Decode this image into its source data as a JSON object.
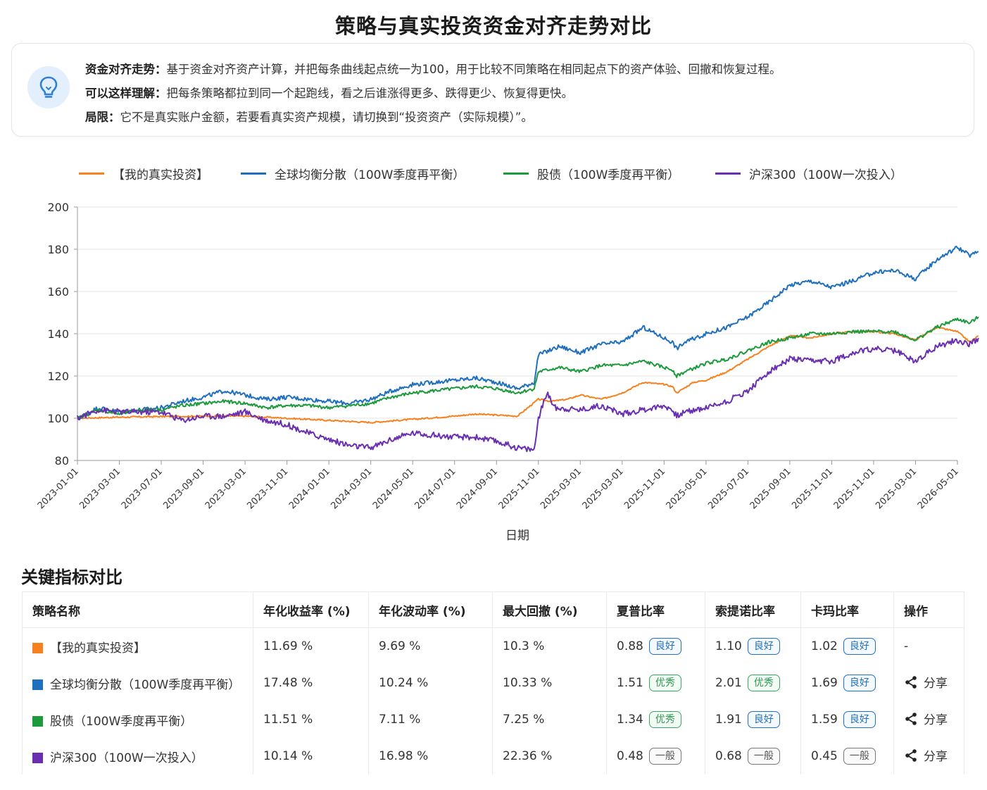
{
  "page": {
    "title": "策略与真实投资资金对齐走势对比"
  },
  "info": {
    "icon": "lightbulb-icon",
    "lines": [
      {
        "label": "资金对齐走势：",
        "text": "基于资金对齐资产计算，并把每条曲线起点统一为100，用于比较不同策略在相同起点下的资产体验、回撤和恢复过程。"
      },
      {
        "label": "可以这样理解：",
        "text": "把每条策略都拉到同一个起跑线，看之后谁涨得更多、跌得更少、恢复得更快。"
      },
      {
        "label": "局限：",
        "text": "它不是真实账户金额，若要看真实资产规模，请切换到“投资资产（实际规模）”。"
      }
    ]
  },
  "chart_data": {
    "type": "line",
    "title": "",
    "xlabel": "日期",
    "ylabel": "",
    "ylim": [
      80,
      200
    ],
    "yticks": [
      80,
      100,
      120,
      140,
      160,
      180,
      200
    ],
    "grid": true,
    "legend_position": "top",
    "xtick_labels": [
      "2023-01-01",
      "2023-03-01",
      "2023-07-01",
      "2023-09-01",
      "2023-03-01",
      "2023-11-01",
      "2024-01-01",
      "2024-03-01",
      "2024-05-01",
      "2024-07-01",
      "2024-09-01",
      "2025-11-01",
      "2025-03-01",
      "2025-03-01",
      "2025-11-01",
      "2025-05-01",
      "2025-07-01",
      "2025-09-01",
      "2025-11-01",
      "2025-11-01",
      "2025-03-01",
      "2026-05-01"
    ],
    "series": [
      {
        "name": "【我的真实投资】",
        "color": "#f5821f",
        "points": [
          [
            0,
            100
          ],
          [
            1,
            100.5
          ],
          [
            2,
            100.8
          ],
          [
            3,
            101
          ],
          [
            4,
            101
          ],
          [
            5,
            100
          ],
          [
            6,
            99
          ],
          [
            7,
            98
          ],
          [
            8,
            99.5
          ],
          [
            9,
            101
          ],
          [
            9.5,
            102
          ],
          [
            10,
            101.5
          ],
          [
            10.5,
            101
          ],
          [
            11,
            109
          ],
          [
            11.3,
            108
          ],
          [
            11.7,
            109
          ],
          [
            12,
            111
          ],
          [
            12.5,
            109
          ],
          [
            13,
            112
          ],
          [
            13.5,
            117
          ],
          [
            14,
            116
          ],
          [
            14.2,
            115
          ],
          [
            14.3,
            112
          ],
          [
            14.7,
            117
          ],
          [
            15,
            118
          ],
          [
            15.5,
            122
          ],
          [
            16,
            128
          ],
          [
            16.5,
            134
          ],
          [
            17,
            139
          ],
          [
            17.5,
            138
          ],
          [
            18,
            140
          ],
          [
            18.5,
            141
          ],
          [
            19,
            141
          ],
          [
            19.5,
            140
          ],
          [
            20,
            137
          ],
          [
            20.5,
            143
          ],
          [
            21,
            141
          ],
          [
            21.3,
            136
          ],
          [
            21.5,
            139
          ]
        ]
      },
      {
        "name": "全球均衡分散（100W季度再平衡）",
        "color": "#1f6fc0",
        "points": [
          [
            0,
            100
          ],
          [
            0.5,
            105
          ],
          [
            1,
            103
          ],
          [
            1.5,
            104
          ],
          [
            2,
            105
          ],
          [
            2.5,
            108
          ],
          [
            3,
            110
          ],
          [
            3.5,
            113
          ],
          [
            4,
            111
          ],
          [
            4.5,
            109
          ],
          [
            5,
            110
          ],
          [
            5.5,
            109
          ],
          [
            6,
            108
          ],
          [
            6.5,
            107
          ],
          [
            7,
            109
          ],
          [
            7.5,
            113
          ],
          [
            8,
            116
          ],
          [
            8.5,
            117
          ],
          [
            9,
            118
          ],
          [
            9.5,
            119
          ],
          [
            10,
            117
          ],
          [
            10.5,
            114
          ],
          [
            10.9,
            117
          ],
          [
            11,
            130
          ],
          [
            11.5,
            134
          ],
          [
            12,
            131
          ],
          [
            12.5,
            135
          ],
          [
            13,
            136
          ],
          [
            13.5,
            143
          ],
          [
            14,
            138
          ],
          [
            14.2,
            136
          ],
          [
            14.3,
            133
          ],
          [
            14.5,
            136
          ],
          [
            15,
            140
          ],
          [
            15.5,
            143
          ],
          [
            16,
            148
          ],
          [
            16.5,
            155
          ],
          [
            17,
            163
          ],
          [
            17.5,
            165
          ],
          [
            18,
            162
          ],
          [
            18.5,
            165
          ],
          [
            19,
            169
          ],
          [
            19.5,
            170
          ],
          [
            20,
            166
          ],
          [
            20.5,
            175
          ],
          [
            21,
            181
          ],
          [
            21.3,
            177
          ],
          [
            21.5,
            179
          ]
        ]
      },
      {
        "name": "股债（100W季度再平衡）",
        "color": "#1c9a3c",
        "points": [
          [
            0,
            100
          ],
          [
            0.5,
            104
          ],
          [
            1,
            102
          ],
          [
            1.5,
            104
          ],
          [
            2,
            104
          ],
          [
            2.5,
            106
          ],
          [
            3,
            107
          ],
          [
            3.5,
            108
          ],
          [
            4,
            107
          ],
          [
            4.5,
            105
          ],
          [
            5,
            106
          ],
          [
            5.5,
            106
          ],
          [
            6,
            105
          ],
          [
            6.5,
            106
          ],
          [
            7,
            107
          ],
          [
            7.5,
            110
          ],
          [
            8,
            112
          ],
          [
            8.5,
            113
          ],
          [
            9,
            114
          ],
          [
            9.5,
            115
          ],
          [
            10,
            114
          ],
          [
            10.5,
            112
          ],
          [
            10.9,
            114
          ],
          [
            11,
            122
          ],
          [
            11.5,
            124
          ],
          [
            12,
            122
          ],
          [
            12.5,
            125
          ],
          [
            13,
            125
          ],
          [
            13.5,
            127
          ],
          [
            14,
            124
          ],
          [
            14.2,
            123
          ],
          [
            14.3,
            120
          ],
          [
            14.5,
            122
          ],
          [
            15,
            126
          ],
          [
            15.5,
            128
          ],
          [
            16,
            132
          ],
          [
            16.5,
            136
          ],
          [
            17,
            138
          ],
          [
            17.5,
            140
          ],
          [
            18,
            140
          ],
          [
            18.5,
            141
          ],
          [
            19,
            141
          ],
          [
            19.5,
            141
          ],
          [
            20,
            137
          ],
          [
            20.5,
            143
          ],
          [
            21,
            147
          ],
          [
            21.3,
            145
          ],
          [
            21.5,
            148
          ]
        ]
      },
      {
        "name": "沪深300（100W一次投入）",
        "color": "#6a2fb0",
        "points": [
          [
            0,
            100
          ],
          [
            0.5,
            104
          ],
          [
            1,
            103
          ],
          [
            1.5,
            103
          ],
          [
            2,
            103
          ],
          [
            2.5,
            99
          ],
          [
            3,
            101
          ],
          [
            3.5,
            101
          ],
          [
            4,
            103
          ],
          [
            4.5,
            99
          ],
          [
            5,
            97
          ],
          [
            5.5,
            93
          ],
          [
            6,
            90
          ],
          [
            6.5,
            87
          ],
          [
            7,
            86
          ],
          [
            7.5,
            90
          ],
          [
            8,
            93
          ],
          [
            8.5,
            92
          ],
          [
            9,
            91
          ],
          [
            9.5,
            91
          ],
          [
            10,
            89
          ],
          [
            10.5,
            86
          ],
          [
            10.9,
            85
          ],
          [
            11,
            100
          ],
          [
            11.2,
            112
          ],
          [
            11.4,
            105
          ],
          [
            12,
            104
          ],
          [
            12.5,
            106
          ],
          [
            13,
            102
          ],
          [
            13.5,
            104
          ],
          [
            14,
            106
          ],
          [
            14.2,
            104
          ],
          [
            14.3,
            101
          ],
          [
            14.5,
            103
          ],
          [
            15,
            105
          ],
          [
            15.5,
            108
          ],
          [
            16,
            113
          ],
          [
            16.5,
            122
          ],
          [
            17,
            128
          ],
          [
            17.5,
            127
          ],
          [
            18,
            127
          ],
          [
            18.5,
            131
          ],
          [
            19,
            133
          ],
          [
            19.5,
            132
          ],
          [
            20,
            127
          ],
          [
            20.5,
            134
          ],
          [
            21,
            137
          ],
          [
            21.3,
            135
          ],
          [
            21.5,
            138
          ]
        ]
      }
    ]
  },
  "metrics": {
    "section_title": "关键指标对比",
    "headers": [
      "策略名称",
      "年化收益率 (%)",
      "年化波动率 (%)",
      "最大回撤 (%)",
      "夏普比率",
      "索提诺比率",
      "卡玛比率",
      "操作"
    ],
    "rows": [
      {
        "color": "#f5821f",
        "name": "【我的真实投资】",
        "ret": "11.69 %",
        "vol": "9.69 %",
        "mdd": "10.3 %",
        "sharpe": "0.88",
        "sharpe_badge": "良好",
        "sharpe_cls": "b-good",
        "sortino": "1.10",
        "sortino_badge": "良好",
        "sortino_cls": "b-good",
        "calmar": "1.02",
        "calmar_badge": "良好",
        "calmar_cls": "b-good",
        "action": "-"
      },
      {
        "color": "#1f6fc0",
        "name": "全球均衡分散（100W季度再平衡）",
        "ret": "17.48 %",
        "vol": "10.24 %",
        "mdd": "10.33 %",
        "sharpe": "1.51",
        "sharpe_badge": "优秀",
        "sharpe_cls": "b-great",
        "sortino": "2.01",
        "sortino_badge": "优秀",
        "sortino_cls": "b-great",
        "calmar": "1.69",
        "calmar_badge": "良好",
        "calmar_cls": "b-good",
        "action": "分享"
      },
      {
        "color": "#1c9a3c",
        "name": "股债（100W季度再平衡）",
        "ret": "11.51 %",
        "vol": "7.11 %",
        "mdd": "7.25 %",
        "sharpe": "1.34",
        "sharpe_badge": "优秀",
        "sharpe_cls": "b-great",
        "sortino": "1.91",
        "sortino_badge": "良好",
        "sortino_cls": "b-good",
        "calmar": "1.59",
        "calmar_badge": "良好",
        "calmar_cls": "b-good",
        "action": "分享"
      },
      {
        "color": "#6a2fb0",
        "name": "沪深300（100W一次投入）",
        "ret": "10.14 %",
        "vol": "16.98 %",
        "mdd": "22.36 %",
        "sharpe": "0.48",
        "sharpe_badge": "一般",
        "sharpe_cls": "b-avg",
        "sortino": "0.68",
        "sortino_badge": "一般",
        "sortino_cls": "b-avg",
        "calmar": "0.45",
        "calmar_badge": "一般",
        "calmar_cls": "b-avg",
        "action": "分享"
      }
    ]
  }
}
